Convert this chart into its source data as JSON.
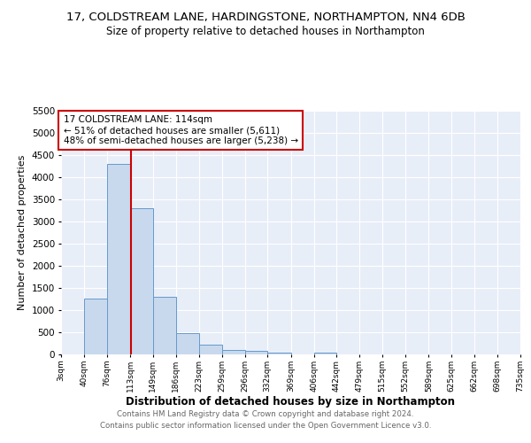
{
  "title": "17, COLDSTREAM LANE, HARDINGSTONE, NORTHAMPTON, NN4 6DB",
  "subtitle": "Size of property relative to detached houses in Northampton",
  "xlabel": "Distribution of detached houses by size in Northampton",
  "ylabel": "Number of detached properties",
  "bar_color": "#c8d9ee",
  "bar_edge_color": "#6699cc",
  "plot_bg_color": "#e8eef8",
  "fig_bg_color": "#ffffff",
  "grid_color": "#ffffff",
  "bins": [
    3,
    40,
    76,
    113,
    149,
    186,
    223,
    259,
    296,
    332,
    369,
    406,
    442,
    479,
    515,
    552,
    589,
    625,
    662,
    698,
    735
  ],
  "counts": [
    0,
    1270,
    4300,
    3300,
    1300,
    480,
    230,
    100,
    80,
    50,
    0,
    50,
    0,
    0,
    0,
    0,
    0,
    0,
    0,
    0
  ],
  "red_line_x": 114,
  "ylim": [
    0,
    5500
  ],
  "yticks": [
    0,
    500,
    1000,
    1500,
    2000,
    2500,
    3000,
    3500,
    4000,
    4500,
    5000,
    5500
  ],
  "annotation_title": "17 COLDSTREAM LANE: 114sqm",
  "annotation_line1": "← 51% of detached houses are smaller (5,611)",
  "annotation_line2": "48% of semi-detached houses are larger (5,238) →",
  "annotation_box_facecolor": "#ffffff",
  "annotation_box_edgecolor": "#cc0000",
  "footnote1": "Contains HM Land Registry data © Crown copyright and database right 2024.",
  "footnote2": "Contains public sector information licensed under the Open Government Licence v3.0."
}
